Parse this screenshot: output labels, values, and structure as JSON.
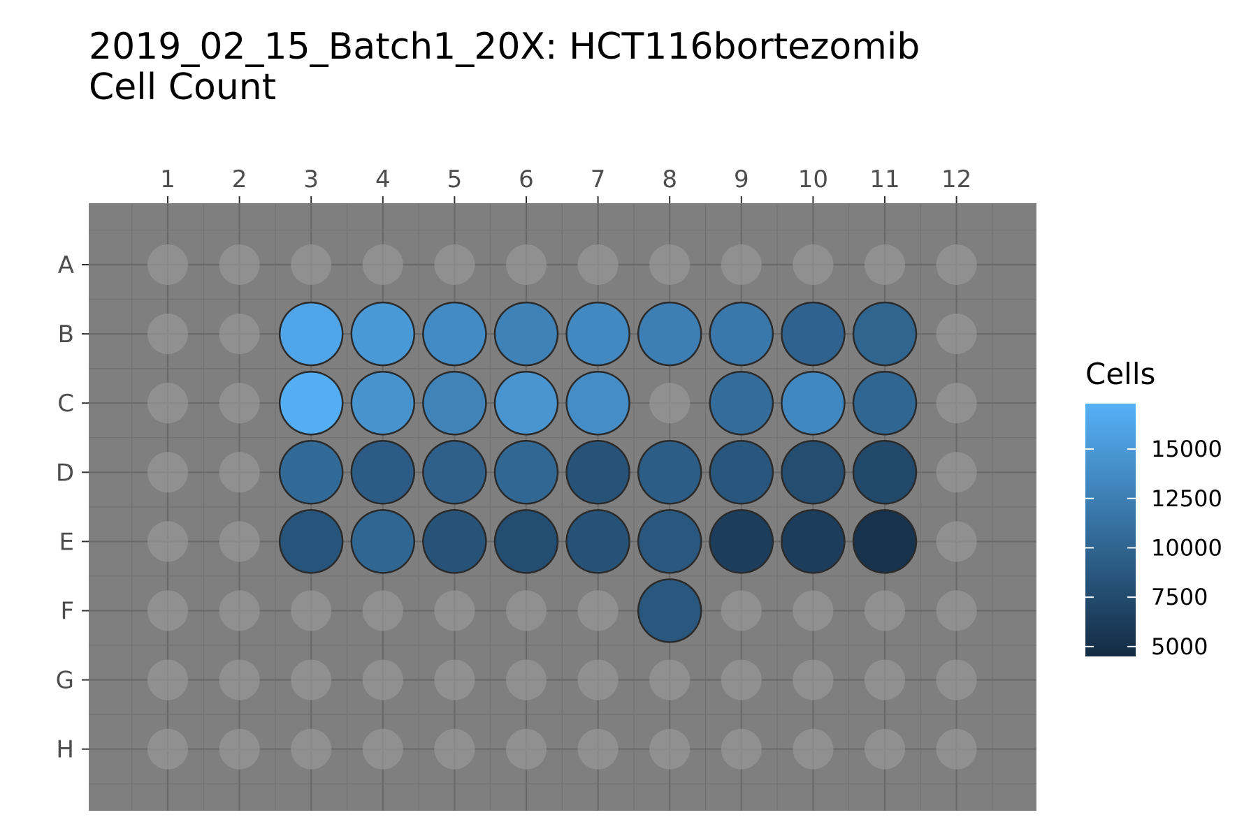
{
  "chart_data": {
    "type": "heatmap",
    "title": "2019_02_15_Batch1_20X: HCT116bortezomib",
    "subtitle": "Cell Count",
    "columns": [
      "1",
      "2",
      "3",
      "4",
      "5",
      "6",
      "7",
      "8",
      "9",
      "10",
      "11",
      "12"
    ],
    "rows": [
      "A",
      "B",
      "C",
      "D",
      "E",
      "F",
      "G",
      "H"
    ],
    "legend": {
      "title": "Cells",
      "ticks": [
        5000,
        7500,
        10000,
        12500,
        15000
      ],
      "tick_labels": [
        "5000",
        "7500",
        "10000",
        "12500",
        "15000"
      ],
      "range": [
        4500,
        17300
      ],
      "low_color": "#132b43",
      "high_color": "#56b1f7",
      "placement": "right"
    },
    "empty_well_color": "#9a9a9a",
    "plate_color": "#7f7f7f",
    "wells": [
      {
        "row": "B",
        "col": "3",
        "value": 16200
      },
      {
        "row": "B",
        "col": "4",
        "value": 15000
      },
      {
        "row": "B",
        "col": "5",
        "value": 13700
      },
      {
        "row": "B",
        "col": "6",
        "value": 12800
      },
      {
        "row": "B",
        "col": "7",
        "value": 13500
      },
      {
        "row": "B",
        "col": "8",
        "value": 12500
      },
      {
        "row": "B",
        "col": "9",
        "value": 11900
      },
      {
        "row": "B",
        "col": "10",
        "value": 9800
      },
      {
        "row": "B",
        "col": "11",
        "value": 10000
      },
      {
        "row": "C",
        "col": "3",
        "value": 17000
      },
      {
        "row": "C",
        "col": "4",
        "value": 14400
      },
      {
        "row": "C",
        "col": "5",
        "value": 12900
      },
      {
        "row": "C",
        "col": "6",
        "value": 14600
      },
      {
        "row": "C",
        "col": "7",
        "value": 13900
      },
      {
        "row": "C",
        "col": "9",
        "value": 10800
      },
      {
        "row": "C",
        "col": "10",
        "value": 13400
      },
      {
        "row": "C",
        "col": "11",
        "value": 10100
      },
      {
        "row": "D",
        "col": "3",
        "value": 10500
      },
      {
        "row": "D",
        "col": "4",
        "value": 9200
      },
      {
        "row": "D",
        "col": "5",
        "value": 9600
      },
      {
        "row": "D",
        "col": "6",
        "value": 10200
      },
      {
        "row": "D",
        "col": "7",
        "value": 8300
      },
      {
        "row": "D",
        "col": "8",
        "value": 9300
      },
      {
        "row": "D",
        "col": "9",
        "value": 8600
      },
      {
        "row": "D",
        "col": "10",
        "value": 7700
      },
      {
        "row": "D",
        "col": "11",
        "value": 7300
      },
      {
        "row": "E",
        "col": "3",
        "value": 8400
      },
      {
        "row": "E",
        "col": "4",
        "value": 10100
      },
      {
        "row": "E",
        "col": "5",
        "value": 8300
      },
      {
        "row": "E",
        "col": "6",
        "value": 7800
      },
      {
        "row": "E",
        "col": "7",
        "value": 8200
      },
      {
        "row": "E",
        "col": "8",
        "value": 8700
      },
      {
        "row": "E",
        "col": "9",
        "value": 6300
      },
      {
        "row": "E",
        "col": "10",
        "value": 6200
      },
      {
        "row": "E",
        "col": "11",
        "value": 5200
      },
      {
        "row": "F",
        "col": "8",
        "value": 8700
      }
    ]
  }
}
